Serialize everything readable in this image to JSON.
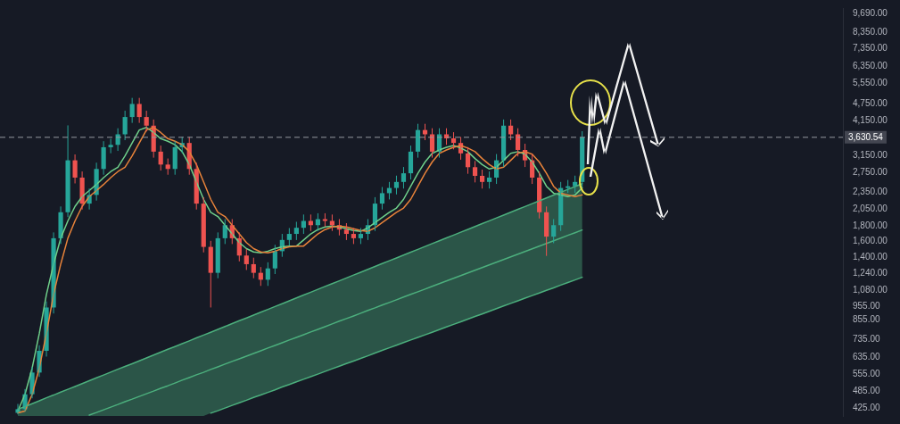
{
  "chart_data": {
    "type": "candlestick",
    "categories": [
      null,
      null,
      null,
      null,
      null,
      null,
      null,
      null,
      null,
      null,
      null,
      null,
      null,
      null,
      null,
      null,
      null,
      null,
      null,
      null,
      null,
      null,
      null,
      null,
      null,
      null,
      null,
      null,
      null,
      null,
      null,
      null,
      null,
      null,
      null,
      null,
      null,
      null,
      null,
      null,
      null,
      null,
      null,
      null,
      null,
      null,
      null,
      null,
      null,
      null,
      null,
      null,
      null,
      null,
      null,
      null,
      null,
      null,
      null,
      null,
      null,
      null,
      null,
      null,
      null,
      null,
      null,
      null,
      null,
      null,
      null,
      null,
      null,
      null,
      null,
      null,
      null,
      null,
      null,
      null,
      null,
      null,
      null,
      null,
      null,
      null,
      null,
      null,
      null,
      null,
      null,
      null,
      null,
      null,
      null,
      null,
      null,
      null,
      null,
      null,
      null,
      null,
      null,
      null,
      null,
      null,
      null,
      null,
      null,
      null,
      null,
      null,
      null,
      null,
      null,
      null,
      null,
      null
    ],
    "ohlc": [
      null,
      null,
      [
        410,
        440,
        405,
        422
      ],
      [
        422,
        495,
        415,
        475
      ],
      [
        475,
        590,
        460,
        564
      ],
      [
        564,
        700,
        545,
        670
      ],
      [
        670,
        990,
        640,
        944
      ],
      [
        944,
        1710,
        900,
        1633
      ],
      [
        1633,
        2100,
        1560,
        2006
      ],
      [
        2006,
        3990,
        1930,
        3026
      ],
      [
        3026,
        3170,
        2520,
        2639
      ],
      [
        2639,
        2770,
        2050,
        2148
      ],
      [
        2148,
        2420,
        2050,
        2301
      ],
      [
        2301,
        2970,
        2200,
        2826
      ],
      [
        2826,
        3520,
        2700,
        3356
      ],
      [
        3356,
        3590,
        3200,
        3420
      ],
      [
        3420,
        3900,
        3260,
        3717
      ],
      [
        3717,
        4480,
        3550,
        4263
      ],
      [
        4263,
        4960,
        4070,
        4727
      ],
      [
        4727,
        4960,
        4070,
        4263
      ],
      [
        4263,
        4480,
        3800,
        3981
      ],
      [
        3981,
        4180,
        3090,
        3241
      ],
      [
        3241,
        3400,
        2790,
        2926
      ],
      [
        2926,
        3070,
        2700,
        2826
      ],
      [
        2826,
        3520,
        2700,
        3356
      ],
      [
        3356,
        3640,
        3200,
        3471
      ],
      [
        3471,
        3640,
        2700,
        2826
      ],
      [
        2826,
        2970,
        2050,
        2148
      ],
      [
        2148,
        2260,
        1460,
        1525
      ],
      [
        1525,
        1600,
        944,
        1242
      ],
      [
        1242,
        1710,
        1190,
        1633
      ],
      [
        1633,
        1900,
        1560,
        1811
      ],
      [
        1811,
        1900,
        1560,
        1633
      ],
      [
        1633,
        1710,
        1360,
        1424
      ],
      [
        1424,
        1500,
        1270,
        1330
      ],
      [
        1330,
        1400,
        1190,
        1242
      ],
      [
        1242,
        1300,
        1120,
        1176
      ],
      [
        1176,
        1350,
        1120,
        1286
      ],
      [
        1286,
        1550,
        1230,
        1474
      ],
      [
        1474,
        1690,
        1410,
        1611
      ],
      [
        1611,
        1770,
        1540,
        1690
      ],
      [
        1690,
        1860,
        1610,
        1774
      ],
      [
        1774,
        1970,
        1690,
        1873
      ],
      [
        1873,
        1970,
        1730,
        1811
      ],
      [
        1811,
        1990,
        1730,
        1899
      ],
      [
        1899,
        1990,
        1790,
        1873
      ],
      [
        1873,
        1970,
        1730,
        1811
      ],
      [
        1811,
        1900,
        1670,
        1749
      ],
      [
        1749,
        1840,
        1610,
        1690
      ],
      [
        1690,
        1770,
        1560,
        1633
      ],
      [
        1633,
        1770,
        1560,
        1690
      ],
      [
        1690,
        1900,
        1610,
        1811
      ],
      [
        1811,
        2260,
        1730,
        2148
      ],
      [
        2148,
        2450,
        2050,
        2333
      ],
      [
        2333,
        2550,
        2220,
        2431
      ],
      [
        2431,
        2680,
        2310,
        2550
      ],
      [
        2550,
        2870,
        2420,
        2731
      ],
      [
        2731,
        3400,
        2600,
        3241
      ],
      [
        3241,
        4040,
        3090,
        3846
      ],
      [
        3846,
        4040,
        3550,
        3717
      ],
      [
        3717,
        3900,
        3090,
        3241
      ],
      [
        3241,
        3900,
        3090,
        3717
      ],
      [
        3717,
        3900,
        3420,
        3600
      ],
      [
        3600,
        3780,
        3300,
        3471
      ],
      [
        3471,
        3640,
        3040,
        3197
      ],
      [
        3197,
        3360,
        2720,
        2866
      ],
      [
        2866,
        3010,
        2540,
        2676
      ],
      [
        2676,
        2810,
        2420,
        2550
      ],
      [
        2550,
        2770,
        2420,
        2639
      ],
      [
        2639,
        3180,
        2510,
        3026
      ],
      [
        3026,
        4180,
        2870,
        3981
      ],
      [
        3981,
        4180,
        3550,
        3717
      ],
      [
        3717,
        3900,
        3120,
        3285
      ],
      [
        3285,
        3450,
        2870,
        3026
      ],
      [
        3026,
        3180,
        2510,
        2639
      ],
      [
        2639,
        2770,
        1910,
        2006
      ],
      [
        2006,
        2100,
        1420,
        1654
      ],
      [
        1654,
        1900,
        1570,
        1811
      ],
      [
        1811,
        2550,
        1730,
        2431
      ],
      [
        2431,
        2590,
        2340,
        2464
      ],
      [
        2464,
        2680,
        2340,
        2550
      ],
      [
        2550,
        3810,
        2420,
        3630.54
      ],
      null,
      null,
      null,
      null,
      null,
      null,
      null,
      null,
      null,
      null,
      null,
      null,
      null,
      null,
      null,
      null,
      null,
      null,
      null,
      null,
      null,
      null,
      null,
      null,
      null,
      null,
      null,
      null,
      null,
      null,
      null,
      null,
      null,
      null,
      null,
      null
    ],
    "series": [
      {
        "type": "area",
        "color": "#4caf7d",
        "values": [
          null,
          null,
          422,
          431,
          441,
          451,
          462,
          472,
          483,
          494,
          505,
          517,
          529,
          541,
          553,
          566,
          579,
          592,
          605,
          619,
          633,
          648,
          663,
          678,
          693,
          709,
          725,
          742,
          759,
          776,
          794,
          812,
          831,
          850,
          869,
          889,
          909,
          930,
          951,
          973,
          995,
          1018,
          1042,
          1065,
          1090,
          1115,
          1140,
          1166,
          1193,
          1220,
          1248,
          1277,
          1306,
          1336,
          1366,
          1397,
          1429,
          1462,
          1495,
          1530,
          1565,
          1600,
          1637,
          1674,
          1713,
          1752,
          1792,
          1833,
          1875,
          1918,
          1961,
          2006,
          2052,
          2099,
          2147,
          2196,
          2246,
          2298,
          2350,
          2404,
          2459,
          2515,
          null,
          null,
          null,
          null,
          null,
          null,
          null,
          null,
          null,
          null,
          null,
          null,
          null,
          null,
          null,
          null,
          null,
          null,
          null,
          null,
          null,
          null,
          null,
          null,
          null,
          null,
          null,
          null,
          null,
          null,
          null,
          null,
          null,
          null,
          null,
          null
        ]
      },
      {
        "type": "line",
        "color": "#4caf7d",
        "values": [
          null,
          null,
          null,
          null,
          null,
          null,
          null,
          null,
          null,
          null,
          null,
          null,
          null,
          null,
          null,
          null,
          null,
          null,
          null,
          null,
          null,
          null,
          null,
          null,
          null,
          null,
          null,
          null,
          null,
          409,
          417,
          426,
          435,
          444,
          453,
          463,
          472,
          482,
          492,
          503,
          513,
          524,
          535,
          546,
          557,
          569,
          581,
          593,
          606,
          618,
          631,
          644,
          658,
          672,
          686,
          700,
          715,
          730,
          745,
          760,
          776,
          792,
          809,
          826,
          843,
          861,
          879,
          897,
          916,
          935,
          955,
          975,
          995,
          1016,
          1037,
          1059,
          1081,
          1103,
          1127,
          1150,
          1174,
          1199,
          null,
          null,
          null,
          null,
          null,
          null,
          null,
          null,
          null,
          null,
          null,
          null,
          null,
          null,
          null,
          null,
          null,
          null,
          null,
          null,
          null,
          null,
          null,
          null,
          null,
          null,
          null,
          null,
          null,
          null,
          null,
          null,
          null,
          null,
          null,
          null
        ]
      },
      {
        "type": "line",
        "color": "#4caf7d",
        "values": [
          null,
          null,
          null,
          null,
          null,
          null,
          null,
          null,
          null,
          null,
          null,
          null,
          403,
          411,
          420,
          429,
          438,
          448,
          457,
          467,
          477,
          487,
          498,
          508,
          519,
          531,
          542,
          554,
          565,
          578,
          590,
          603,
          616,
          629,
          642,
          656,
          670,
          685,
          699,
          714,
          730,
          745,
          761,
          778,
          794,
          811,
          829,
          847,
          865,
          883,
          902,
          922,
          941,
          962,
          982,
          1003,
          1025,
          1047,
          1069,
          1092,
          1116,
          1140,
          1164,
          1189,
          1215,
          1241,
          1267,
          1295,
          1322,
          1351,
          1380,
          1409,
          1440,
          1471,
          1502,
          1534,
          1567,
          1601,
          1635,
          1671,
          1706,
          1743,
          null,
          null,
          null,
          null,
          null,
          null,
          null,
          null,
          null,
          null,
          null,
          null,
          null,
          null,
          null,
          null,
          null,
          null,
          null,
          null,
          null,
          null,
          null,
          null,
          null,
          null,
          null,
          null,
          null,
          null,
          null,
          null,
          null,
          null,
          null,
          null
        ]
      },
      {
        "type": "line",
        "color": "#e8833a",
        "values": [
          null,
          null,
          410,
          416,
          475,
          584,
          768,
          1047,
          1330,
          1633,
          1873,
          2101,
          2270,
          2381,
          2499,
          2639,
          2768,
          2865,
          3132,
          3471,
          3846,
          3926,
          3770,
          3592,
          3519,
          3424,
          3241,
          2926,
          2550,
          2223,
          2006,
          1939,
          1811,
          1690,
          1578,
          1505,
          1465,
          1455,
          1474,
          1505,
          1525,
          1535,
          1535,
          1611,
          1690,
          1749,
          1785,
          1798,
          1785,
          1761,
          1737,
          1725,
          1773,
          1848,
          1925,
          2006,
          2074,
          2223,
          2464,
          2731,
          2985,
          3197,
          3285,
          3356,
          3402,
          3333,
          3241,
          3068,
          2926,
          2826,
          2865,
          3026,
          3197,
          3241,
          3175,
          2985,
          2731,
          2464,
          2333,
          2301,
          2270,
          2301,
          null,
          null,
          null,
          null,
          null,
          null,
          null,
          null,
          null,
          null,
          null,
          null,
          null,
          null,
          null,
          null,
          null,
          null,
          null,
          null,
          null,
          null,
          null,
          null,
          null,
          null,
          null,
          null,
          null,
          null,
          null,
          null,
          null,
          null,
          null,
          null
        ]
      },
      {
        "type": "line",
        "color": "#6fd08a",
        "values": [
          null,
          null,
          416,
          475,
          584,
          768,
          1047,
          1330,
          1633,
          1873,
          2101,
          2270,
          2381,
          2499,
          2639,
          2768,
          2865,
          3132,
          3471,
          3846,
          3926,
          3770,
          3592,
          3519,
          3424,
          3241,
          2926,
          2550,
          2223,
          2006,
          1939,
          1811,
          1690,
          1578,
          1505,
          1465,
          1455,
          1474,
          1505,
          1525,
          1535,
          1535,
          1611,
          1690,
          1749,
          1785,
          1798,
          1785,
          1761,
          1737,
          1725,
          1773,
          1848,
          1925,
          2006,
          2074,
          2223,
          2464,
          2731,
          2985,
          3197,
          3285,
          3356,
          3402,
          3333,
          3241,
          3068,
          2926,
          2826,
          2865,
          3026,
          3197,
          3241,
          3175,
          2985,
          2731,
          2464,
          2333,
          2301,
          2270,
          2301,
          2431,
          null,
          null,
          null,
          null,
          null,
          null,
          null,
          null,
          null,
          null,
          null,
          null,
          null,
          null,
          null,
          null,
          null,
          null,
          null,
          null,
          null,
          null,
          null,
          null,
          null,
          null,
          null,
          null,
          null,
          null,
          null,
          null,
          null,
          null,
          null,
          null
        ]
      }
    ],
    "log": "y",
    "ylim": [
      400,
      10100
    ],
    "yticks": [
      {
        "value": 9690,
        "label": "9,690.00"
      },
      {
        "value": 8350,
        "label": "8,350.00"
      },
      {
        "value": 7350,
        "label": "7,350.00"
      },
      {
        "value": 6350,
        "label": "6,350.00"
      },
      {
        "value": 5550,
        "label": "5,550.00"
      },
      {
        "value": 4750,
        "label": "4,750.00"
      },
      {
        "value": 4150,
        "label": "4,150.00"
      },
      {
        "value": 3150,
        "label": "3,150.00"
      },
      {
        "value": 2750,
        "label": "2,750.00"
      },
      {
        "value": 2350,
        "label": "2,350.00"
      },
      {
        "value": 2050,
        "label": "2,050.00"
      },
      {
        "value": 1800,
        "label": "1,800.00"
      },
      {
        "value": 1600,
        "label": "1,600.00"
      },
      {
        "value": 1400,
        "label": "1,400.00"
      },
      {
        "value": 1240,
        "label": "1,240.00"
      },
      {
        "value": 1080,
        "label": "1,080.00"
      },
      {
        "value": 955,
        "label": "955.00"
      },
      {
        "value": 855,
        "label": "855.00"
      },
      {
        "value": 735,
        "label": "735.00"
      },
      {
        "value": 635,
        "label": "635.00"
      },
      {
        "value": 555,
        "label": "555.00"
      },
      {
        "value": 485,
        "label": "485.00"
      },
      {
        "value": 425,
        "label": "425.00"
      }
    ],
    "ref_lines": [
      {
        "axis": "y",
        "value": 3630.54,
        "label": "3,630.54",
        "color": "#9598a1",
        "line_style": "dashed"
      }
    ],
    "tick_labels": "y",
    "grid": false,
    "legend": false,
    "marker": "none",
    "line_style": "solid"
  }
}
